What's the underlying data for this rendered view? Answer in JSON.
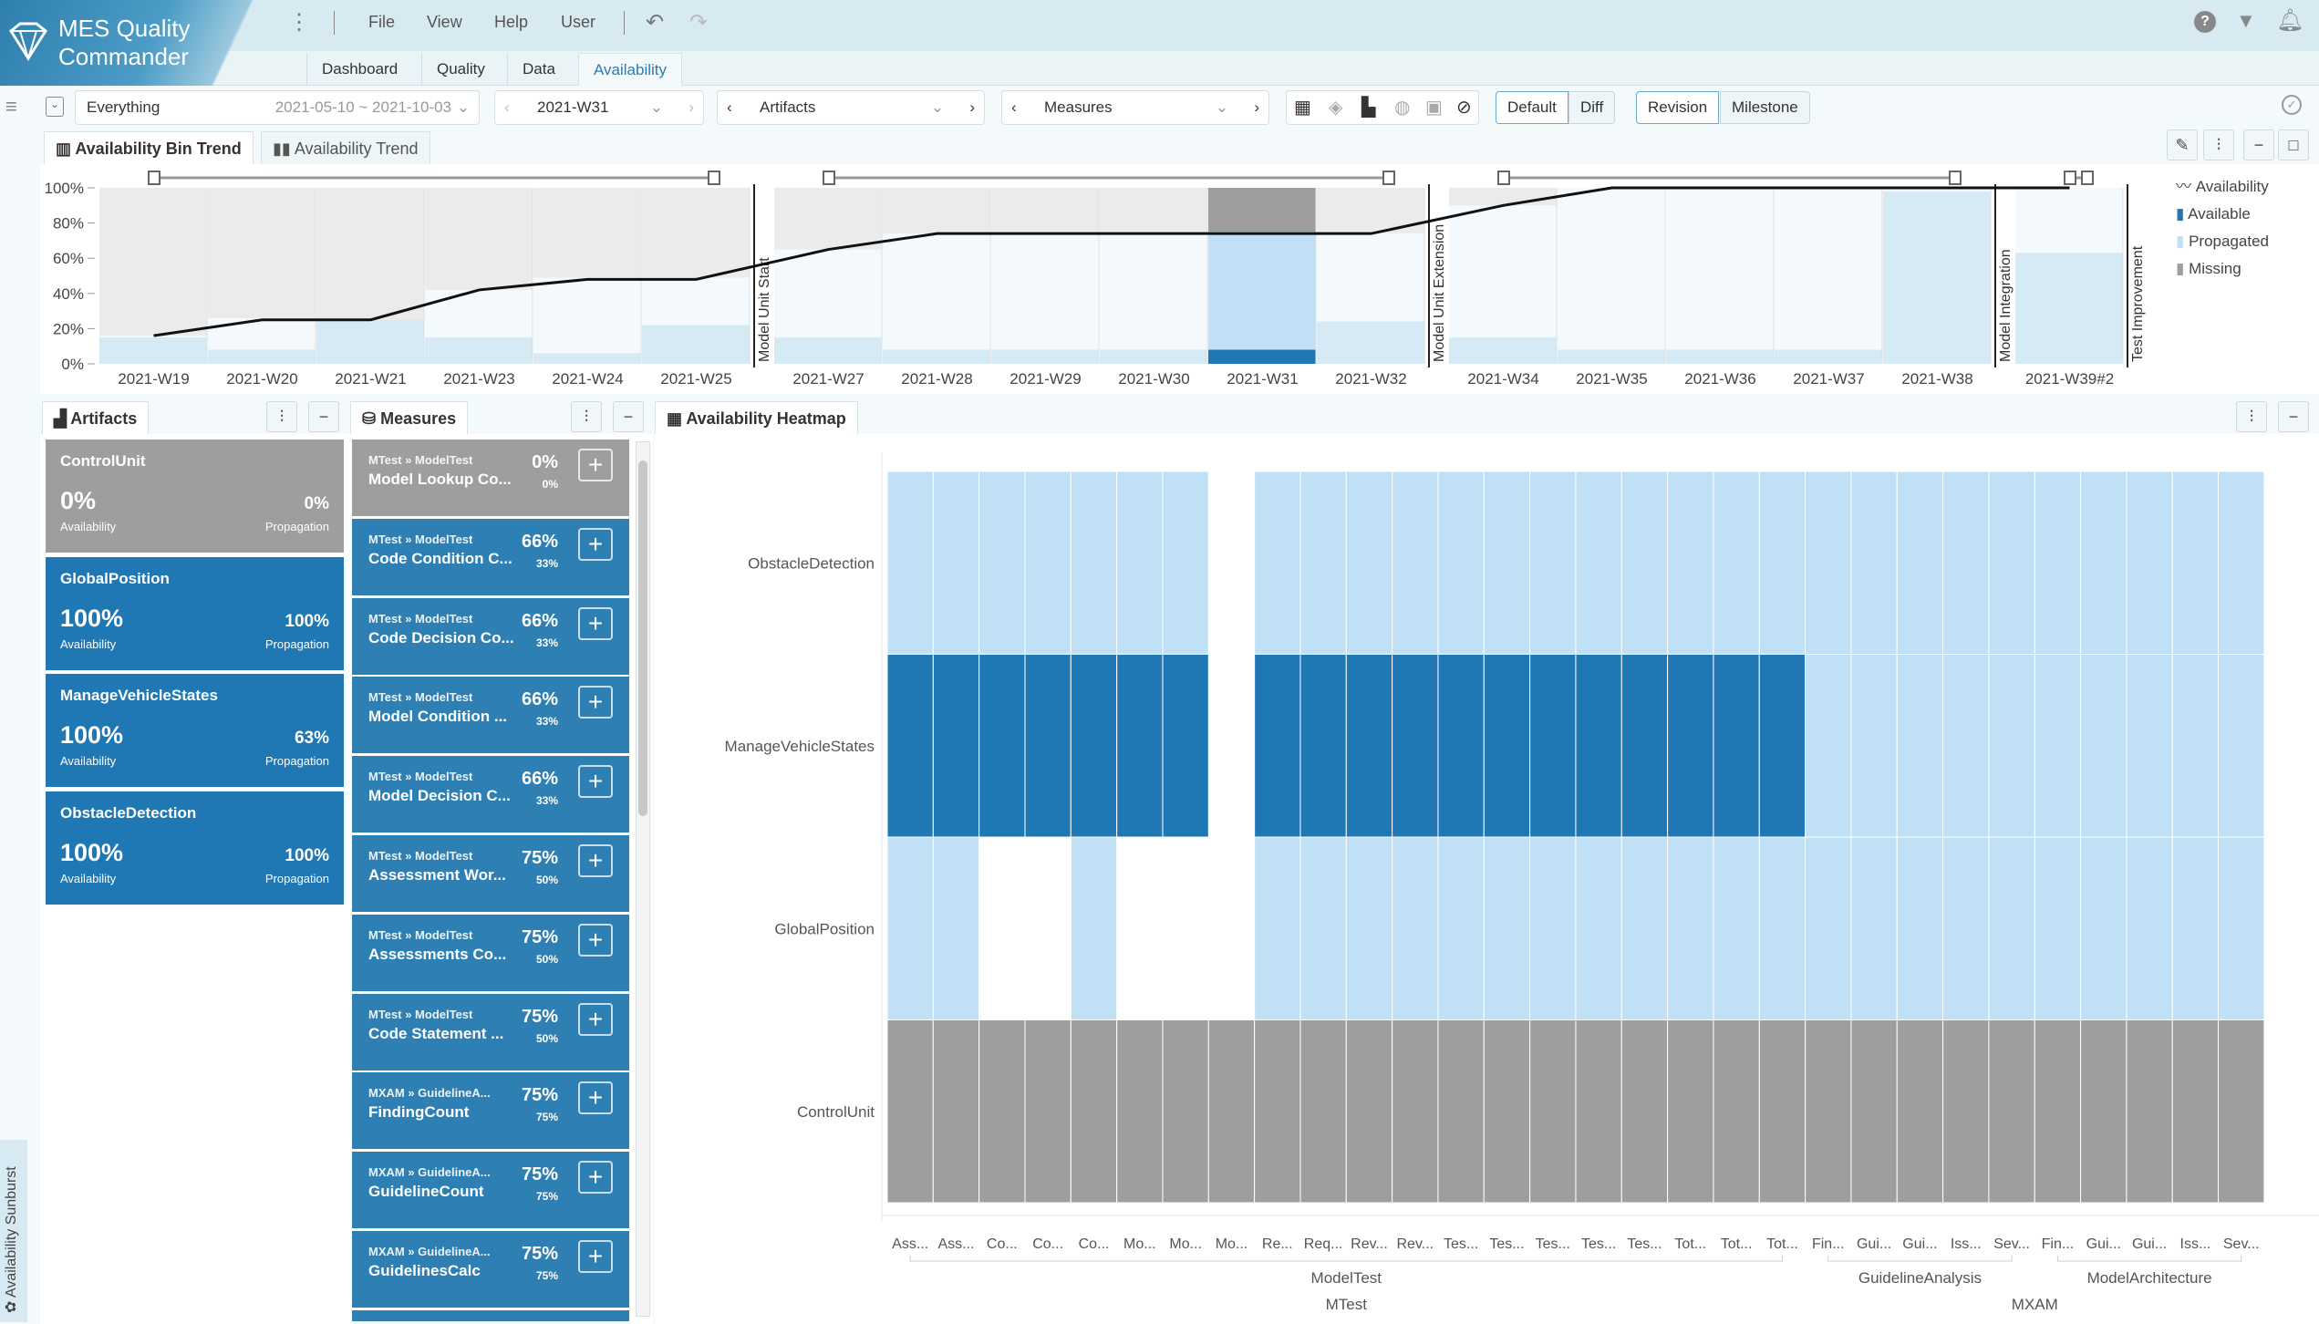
{
  "app": {
    "title_line1": "MES Quality",
    "title_line2": "Commander"
  },
  "menu": [
    "File",
    "View",
    "Help",
    "User"
  ],
  "nav_tabs": [
    {
      "label": "Dashboard"
    },
    {
      "label": "Quality"
    },
    {
      "label": "Data"
    },
    {
      "label": "Availability",
      "active": true
    }
  ],
  "toolbar": {
    "scope": "Everything",
    "date_range": "2021-05-10 ~ 2021-10-03",
    "bin": "2021-W31",
    "artifacts": "Artifacts",
    "measures": "Measures",
    "default_label": "Default",
    "diff_label": "Diff",
    "revision_label": "Revision",
    "milestone_label": "Milestone"
  },
  "chart_tabs": [
    "Availability Bin Trend",
    "Availability Trend"
  ],
  "colors": {
    "available": "#1f77b4",
    "propagated": "#bfe0f5",
    "missing": "#9e9e9e",
    "available_faded": "#d5eaf4",
    "propagated_faded": "#f3f9fc",
    "missing_faded": "#ebebeb"
  },
  "chart_data": {
    "type": "bar",
    "title": "Availability Bin Trend",
    "ylim": [
      0,
      100
    ],
    "yticks": [
      "0%",
      "20%",
      "40%",
      "60%",
      "80%",
      "100%"
    ],
    "legend": [
      "Availability",
      "Available",
      "Propagated",
      "Missing"
    ],
    "legend_position": "right",
    "selected": "2021-W31",
    "bins": [
      {
        "label": "2021-W19",
        "available": 15,
        "propagated": 1,
        "availability": 16
      },
      {
        "label": "2021-W20",
        "available": 8,
        "propagated": 18,
        "availability": 25
      },
      {
        "label": "2021-W21",
        "available": 25,
        "propagated": 0,
        "availability": 25
      },
      {
        "label": "2021-W23",
        "available": 15,
        "propagated": 27,
        "availability": 42
      },
      {
        "label": "2021-W24",
        "available": 6,
        "propagated": 43,
        "availability": 48
      },
      {
        "label": "2021-W25",
        "available": 22,
        "propagated": 27,
        "availability": 48,
        "milestone_after": "Model Unit Start"
      },
      {
        "label": "2021-W27",
        "available": 15,
        "propagated": 50,
        "availability": 65
      },
      {
        "label": "2021-W28",
        "available": 8,
        "propagated": 66,
        "availability": 74
      },
      {
        "label": "2021-W29",
        "available": 8,
        "propagated": 66,
        "availability": 74
      },
      {
        "label": "2021-W30",
        "available": 8,
        "propagated": 66,
        "availability": 74
      },
      {
        "label": "2021-W31",
        "available": 8,
        "propagated": 67,
        "availability": 74
      },
      {
        "label": "2021-W32",
        "available": 24,
        "propagated": 50,
        "availability": 74,
        "milestone_after": "Model Unit Extension"
      },
      {
        "label": "2021-W34",
        "available": 15,
        "propagated": 75,
        "availability": 90
      },
      {
        "label": "2021-W35",
        "available": 8,
        "propagated": 92,
        "availability": 100
      },
      {
        "label": "2021-W36",
        "available": 8,
        "propagated": 92,
        "availability": 100
      },
      {
        "label": "2021-W37",
        "available": 8,
        "propagated": 92,
        "availability": 100
      },
      {
        "label": "2021-W38",
        "available": 98,
        "propagated": 2,
        "availability": 100,
        "milestone_after": "Model Integration"
      },
      {
        "label": "2021-W39#2",
        "available": 63,
        "propagated": 37,
        "availability": 100,
        "milestone_after": "Test Improvement"
      }
    ]
  },
  "artifacts": {
    "tab": "Artifacts",
    "items": [
      {
        "name": "ControlUnit",
        "availability": "0%",
        "propagation": "0%",
        "state": "missing"
      },
      {
        "name": "GlobalPosition",
        "availability": "100%",
        "propagation": "100%",
        "state": "available"
      },
      {
        "name": "ManageVehicleStates",
        "availability": "100%",
        "propagation": "63%",
        "state": "available"
      },
      {
        "name": "ObstacleDetection",
        "availability": "100%",
        "propagation": "100%",
        "state": "available"
      }
    ],
    "availability_label": "Availability",
    "propagation_label": "Propagation"
  },
  "measures": {
    "tab": "Measures",
    "items": [
      {
        "path": "MTest » ModelTest",
        "name": "Model Lookup Co...",
        "pct": "0%",
        "sub": "0%",
        "state": "missing"
      },
      {
        "path": "MTest » ModelTest",
        "name": "Code Condition C...",
        "pct": "66%",
        "sub": "33%"
      },
      {
        "path": "MTest » ModelTest",
        "name": "Code Decision Co...",
        "pct": "66%",
        "sub": "33%"
      },
      {
        "path": "MTest » ModelTest",
        "name": "Model Condition ...",
        "pct": "66%",
        "sub": "33%"
      },
      {
        "path": "MTest » ModelTest",
        "name": "Model Decision C...",
        "pct": "66%",
        "sub": "33%"
      },
      {
        "path": "MTest » ModelTest",
        "name": "Assessment Wor...",
        "pct": "75%",
        "sub": "50%"
      },
      {
        "path": "MTest » ModelTest",
        "name": "Assessments Co...",
        "pct": "75%",
        "sub": "50%"
      },
      {
        "path": "MTest » ModelTest",
        "name": "Code Statement ...",
        "pct": "75%",
        "sub": "50%"
      },
      {
        "path": "MXAM » GuidelineA...",
        "name": "FindingCount",
        "pct": "75%",
        "sub": "75%"
      },
      {
        "path": "MXAM » GuidelineA...",
        "name": "GuidelineCount",
        "pct": "75%",
        "sub": "75%"
      },
      {
        "path": "MXAM » GuidelineA...",
        "name": "GuidelinesCalc",
        "pct": "75%",
        "sub": "75%"
      }
    ]
  },
  "heatmap": {
    "tab": "Availability Heatmap",
    "rows": [
      "ObstacleDetection",
      "ManageVehicleStates",
      "GlobalPosition",
      "ControlUnit"
    ],
    "columns": [
      "Ass...",
      "Ass...",
      "Co...",
      "Co...",
      "Co...",
      "Mo...",
      "Mo...",
      "Mo...",
      "Re...",
      "Req...",
      "Rev...",
      "Rev...",
      "Tes...",
      "Tes...",
      "Tes...",
      "Tes...",
      "Tes...",
      "Tot...",
      "Tot...",
      "Tot...",
      "Fin...",
      "Gui...",
      "Gui...",
      "Iss...",
      "Sev...",
      "Fin...",
      "Gui...",
      "Gui...",
      "Iss...",
      "Sev..."
    ],
    "groups": [
      {
        "label": "ModelTest",
        "from": 0,
        "to": 19
      },
      {
        "label": "GuidelineAnalysis",
        "from": 20,
        "to": 24
      },
      {
        "label": "ModelArchitecture",
        "from": 25,
        "to": 29
      }
    ],
    "supergroups": [
      {
        "label": "MTest",
        "from": 0,
        "to": 19
      },
      {
        "label": "MXAM",
        "from": 20,
        "to": 29
      }
    ],
    "legend_values": {
      "0": "none",
      "1": "propagated",
      "2": "available",
      "3": "missing"
    },
    "cells": [
      [
        1,
        1,
        1,
        1,
        1,
        1,
        1,
        0,
        1,
        1,
        1,
        1,
        1,
        1,
        1,
        1,
        1,
        1,
        1,
        1,
        1,
        1,
        1,
        1,
        1,
        1,
        1,
        1,
        1,
        1
      ],
      [
        2,
        2,
        2,
        2,
        2,
        2,
        2,
        0,
        2,
        2,
        2,
        2,
        2,
        2,
        2,
        2,
        2,
        2,
        2,
        2,
        1,
        1,
        1,
        1,
        1,
        1,
        1,
        1,
        1,
        1
      ],
      [
        1,
        1,
        0,
        0,
        1,
        0,
        0,
        0,
        1,
        1,
        1,
        1,
        1,
        1,
        1,
        1,
        1,
        1,
        1,
        1,
        1,
        1,
        1,
        1,
        1,
        1,
        1,
        1,
        1,
        1
      ],
      [
        3,
        3,
        3,
        3,
        3,
        3,
        3,
        3,
        3,
        3,
        3,
        3,
        3,
        3,
        3,
        3,
        3,
        3,
        3,
        3,
        3,
        3,
        3,
        3,
        3,
        3,
        3,
        3,
        3,
        3
      ]
    ]
  },
  "sidebar": {
    "sunburst_label": "Availability Sunburst"
  }
}
